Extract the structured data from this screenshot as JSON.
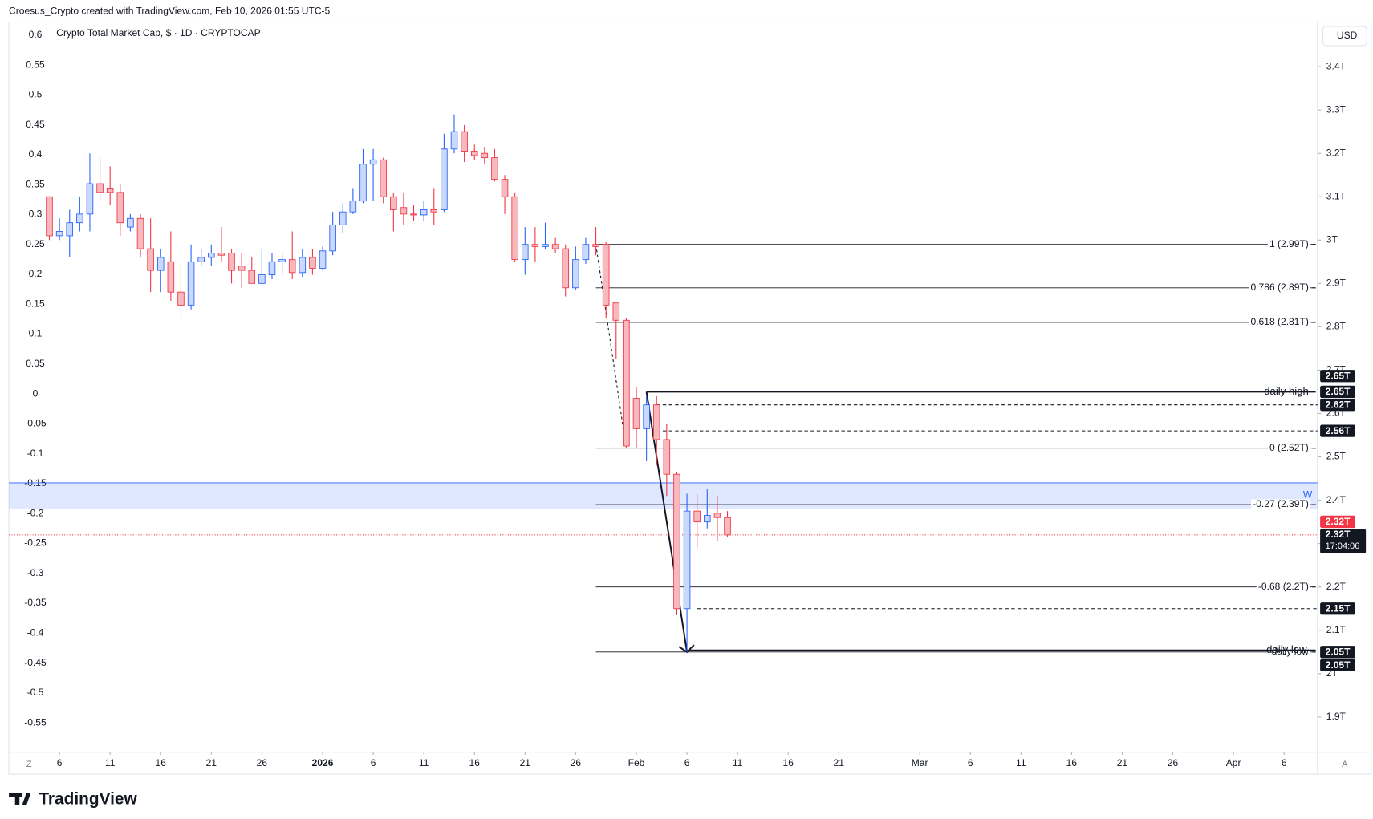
{
  "header": "Croesus_Crypto created with TradingView.com, Feb 10, 2026 01:55 UTC-5",
  "brand": "TradingView",
  "chart_data": {
    "type": "candlestick",
    "title": "Crypto Total Market Cap, $ · 1D · CRYPTOCAP",
    "currency": "USD",
    "up_color": "#2962ff",
    "up_fill": "#c9d9fb",
    "down_color": "#f23645",
    "down_fill": "#f7b9bd",
    "open": [
      3.1,
      3.01,
      3.01,
      3.04,
      3.06,
      3.13,
      3.12,
      3.11,
      3.03,
      3.05,
      2.98,
      2.93,
      2.95,
      2.88,
      2.85,
      2.95,
      2.96,
      2.97,
      2.97,
      2.94,
      2.93,
      2.9,
      2.92,
      2.95,
      2.955,
      2.925,
      2.96,
      2.935,
      2.975,
      3.035,
      3.065,
      3.09,
      3.175,
      3.185,
      3.1,
      3.075,
      3.06,
      3.058,
      3.07,
      3.07,
      3.21,
      3.25,
      3.205,
      3.2,
      3.19,
      3.14,
      3.1,
      2.955,
      2.99,
      2.985,
      2.99,
      2.98,
      2.89,
      2.955,
      2.99,
      2.99,
      2.855,
      2.815,
      2.635,
      2.565,
      2.62,
      2.54,
      2.46,
      2.15,
      2.375,
      2.35,
      2.37,
      2.36
    ],
    "high": [
      3.1,
      3.05,
      3.07,
      3.1,
      3.2,
      3.19,
      3.17,
      3.13,
      3.06,
      3.06,
      3.05,
      2.98,
      3.02,
      2.95,
      2.99,
      2.98,
      2.99,
      3.03,
      2.98,
      2.97,
      2.96,
      2.98,
      2.97,
      2.97,
      3.02,
      2.98,
      2.98,
      2.985,
      3.065,
      3.085,
      3.12,
      3.21,
      3.21,
      3.19,
      3.11,
      3.11,
      3.08,
      3.09,
      3.12,
      3.245,
      3.29,
      3.265,
      3.22,
      3.215,
      3.21,
      3.15,
      3.11,
      3.03,
      3.03,
      3.04,
      3.005,
      2.99,
      2.985,
      3.005,
      3.03,
      2.995,
      2.855,
      2.82,
      2.66,
      2.64,
      2.64,
      2.575,
      2.465,
      2.415,
      2.415,
      2.425,
      2.41,
      2.375
    ],
    "low": [
      3.0,
      3.0,
      2.96,
      3.02,
      3.02,
      3.09,
      3.08,
      3.01,
      3.02,
      2.96,
      2.88,
      2.88,
      2.86,
      2.82,
      2.84,
      2.94,
      2.94,
      2.95,
      2.9,
      2.89,
      2.9,
      2.9,
      2.91,
      2.92,
      2.91,
      2.915,
      2.92,
      2.93,
      2.965,
      3.015,
      3.06,
      3.085,
      3.09,
      3.085,
      3.02,
      3.035,
      3.045,
      3.045,
      3.035,
      3.065,
      3.2,
      3.18,
      3.185,
      3.175,
      3.135,
      3.06,
      2.95,
      2.92,
      2.95,
      2.98,
      2.97,
      2.87,
      2.885,
      2.945,
      2.965,
      2.82,
      2.725,
      2.52,
      2.52,
      2.49,
      2.48,
      2.41,
      2.135,
      2.05,
      2.29,
      2.335,
      2.305,
      2.315
    ],
    "close": [
      3.01,
      3.02,
      3.04,
      3.06,
      3.13,
      3.11,
      3.11,
      3.04,
      3.05,
      2.98,
      2.93,
      2.96,
      2.88,
      2.85,
      2.95,
      2.96,
      2.97,
      2.965,
      2.93,
      2.93,
      2.9,
      2.92,
      2.95,
      2.955,
      2.925,
      2.96,
      2.935,
      2.975,
      3.035,
      3.065,
      3.09,
      3.175,
      3.185,
      3.1,
      3.07,
      3.06,
      3.058,
      3.07,
      3.065,
      3.21,
      3.25,
      3.205,
      3.195,
      3.19,
      3.14,
      3.1,
      2.955,
      2.99,
      2.985,
      2.99,
      2.98,
      2.89,
      2.955,
      2.99,
      2.985,
      2.85,
      2.815,
      2.525,
      2.565,
      2.62,
      2.54,
      2.46,
      2.15,
      2.375,
      2.35,
      2.365,
      2.36,
      2.32
    ],
    "xlim": [
      -4,
      125.3
    ],
    "xticks": [
      {
        "value": 1,
        "label": "6"
      },
      {
        "value": 6,
        "label": "11"
      },
      {
        "value": 11,
        "label": "16"
      },
      {
        "value": 16,
        "label": "21"
      },
      {
        "value": 21,
        "label": "26"
      },
      {
        "value": 27,
        "label": "2026"
      },
      {
        "value": 32,
        "label": "6"
      },
      {
        "value": 37,
        "label": "11"
      },
      {
        "value": 42,
        "label": "16"
      },
      {
        "value": 47,
        "label": "21"
      },
      {
        "value": 52,
        "label": "26"
      },
      {
        "value": 58,
        "label": "Feb"
      },
      {
        "value": 63,
        "label": "6"
      },
      {
        "value": 68,
        "label": "11"
      },
      {
        "value": 73,
        "label": "16"
      },
      {
        "value": 78,
        "label": "21"
      },
      {
        "value": 86,
        "label": "Mar"
      },
      {
        "value": 91,
        "label": "6"
      },
      {
        "value": 96,
        "label": "11"
      },
      {
        "value": 101,
        "label": "16"
      },
      {
        "value": 106,
        "label": "21"
      },
      {
        "value": 111,
        "label": "26"
      },
      {
        "value": 117,
        "label": "Apr"
      },
      {
        "value": 122,
        "label": "6"
      }
    ],
    "ylim": [
      1.819,
      3.503
    ],
    "yticks": [
      {
        "value": 3.4,
        "label": "3.4T"
      },
      {
        "value": 3.3,
        "label": "3.3T"
      },
      {
        "value": 3.2,
        "label": "3.2T"
      },
      {
        "value": 3.1,
        "label": "3.1T"
      },
      {
        "value": 3,
        "label": "3T"
      },
      {
        "value": 2.9,
        "label": "2.9T"
      },
      {
        "value": 2.8,
        "label": "2.8T"
      },
      {
        "value": 2.7,
        "label": "2.7T"
      },
      {
        "value": 2.6,
        "label": "2.6T"
      },
      {
        "value": 2.5,
        "label": "2.5T"
      },
      {
        "value": 2.4,
        "label": "2.4T"
      },
      {
        "value": 2.3,
        "label": "2.3T"
      },
      {
        "value": 2.2,
        "label": "2.2T"
      },
      {
        "value": 2.1,
        "label": "2.1T"
      },
      {
        "value": 2,
        "label": "2T"
      },
      {
        "value": 1.9,
        "label": "1.9T"
      }
    ],
    "y2lim": [
      -0.599,
      0.622
    ],
    "y2ticks": [
      0.6,
      0.55,
      0.5,
      0.45,
      0.4,
      0.35,
      0.3,
      0.25,
      0.2,
      0.15,
      0.1,
      0.05,
      0,
      -0.05,
      -0.1,
      -0.15,
      -0.2,
      -0.25,
      -0.3,
      -0.35,
      -0.4,
      -0.45,
      -0.5,
      -0.55
    ],
    "fib_levels": [
      {
        "value": 2.99,
        "label": "1 (2.99T)"
      },
      {
        "value": 2.89,
        "label": "0.786 (2.89T)"
      },
      {
        "value": 2.81,
        "label": "0.618 (2.81T)"
      },
      {
        "value": 2.52,
        "label": "0 (2.52T)"
      },
      {
        "value": 2.39,
        "label": "-0.27 (2.39T)"
      },
      {
        "value": 2.2,
        "label": "-0.68 (2.2T)"
      },
      {
        "value": 2.05,
        "label": "daily low"
      }
    ],
    "daily_high": {
      "value": 2.65,
      "label": "daily high"
    },
    "daily_low": {
      "value": 2.05,
      "label": "daily low"
    },
    "dashed_levels": [
      2.62,
      2.56,
      2.15
    ],
    "zone": {
      "label": "W",
      "low": 2.38,
      "high": 2.44,
      "color": "#2962ff"
    },
    "last_price": {
      "value": 2.32,
      "label": "2.32T",
      "countdown": "17:04:06"
    },
    "price_badges": [
      {
        "value": 2.65,
        "label": "2.65T"
      },
      {
        "value": 2.65,
        "label": "2.65T"
      },
      {
        "value": 2.62,
        "label": "2.62T"
      },
      {
        "value": 2.56,
        "label": "2.56T"
      },
      {
        "value": 2.32,
        "label": "2.32T"
      },
      {
        "value": 2.15,
        "label": "2.15T"
      },
      {
        "value": 2.05,
        "label": "2.05T"
      },
      {
        "value": 2.05,
        "label": "2.05T"
      }
    ],
    "corner_left": "Z",
    "corner_right": "A"
  }
}
